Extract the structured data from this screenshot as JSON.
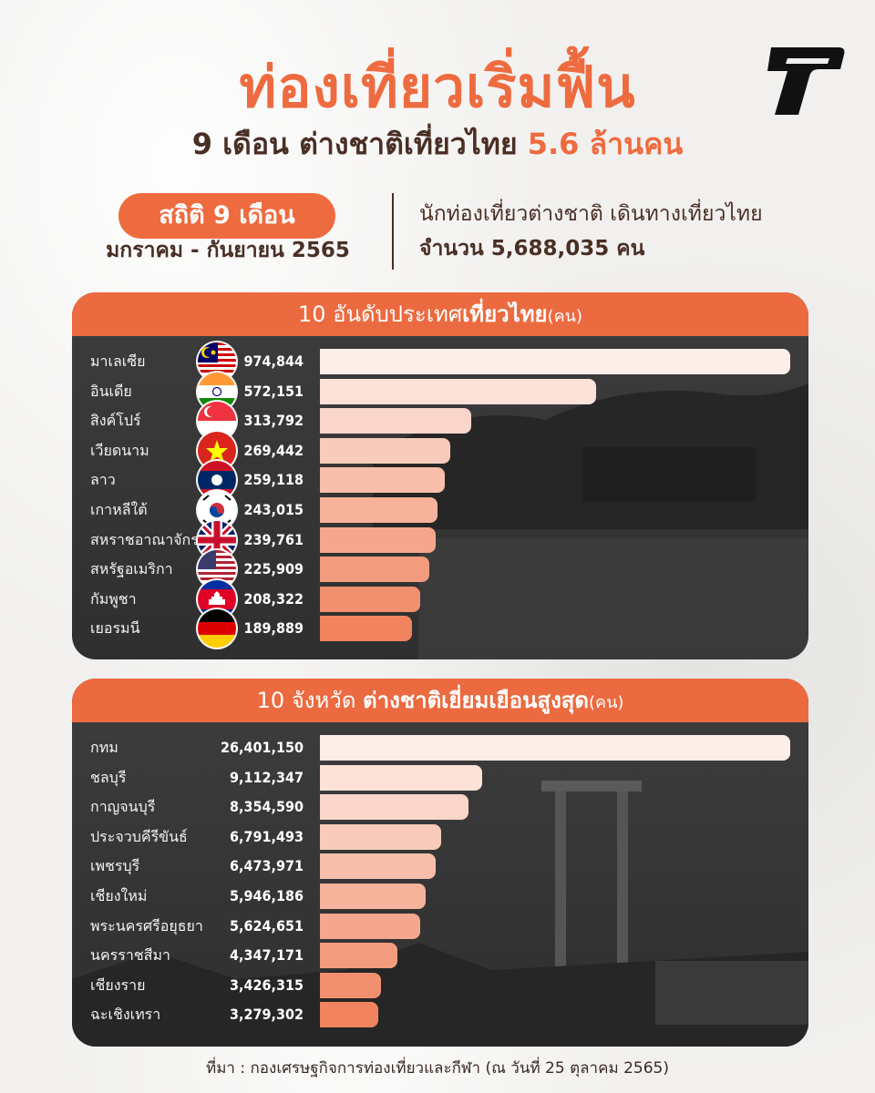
{
  "title": "ท่องเที่ยวเริ่มฟื้น",
  "subtitle": {
    "part1": "9 เดือน ต่างชาติเที่ยวไทย",
    "highlight": "5.6 ล้านคน"
  },
  "stats": {
    "pill": "สถิติ 9 เดือน",
    "range": "มกราคม - กันยายน 2565",
    "description": "นักท่องเที่ยวต่างชาติ เดินทางเที่ยวไทย",
    "total_line": "จำนวน 5,688,035 คน"
  },
  "colors": {
    "accent": "#ee6b3f",
    "text_dark": "#4a2f25",
    "bar_light": "#fdeee8",
    "bar_dark": "#f0845f"
  },
  "footer": "ที่มา : กองเศรษฐกิจการท่องเที่ยวและกีฬา (ณ วันที่ 25 ตุลาคม 2565)",
  "chart_data": [
    {
      "type": "bar",
      "orientation": "horizontal",
      "title": "10 อันดับประเทศเที่ยวไทย(คน)",
      "title_parts": {
        "prefix": "10 อันดับประเทศ",
        "bold": "เที่ยวไทย",
        "unit": "(คน)"
      },
      "categories": [
        "มาเลเซีย",
        "อินเดีย",
        "สิงค์โปร์",
        "เวียดนาม",
        "ลาว",
        "เกาหลีใต้",
        "สหราชอาณาจักร",
        "สหรัฐอเมริกา",
        "กัมพูชา",
        "เยอรมนี"
      ],
      "value_labels": [
        "974,844",
        "572,151",
        "313,792",
        "269,442",
        "259,118",
        "243,015",
        "239,761",
        "225,909",
        "208,322",
        "189,889"
      ],
      "values": [
        974844,
        572151,
        313792,
        269442,
        259118,
        243015,
        239761,
        225909,
        208322,
        189889
      ],
      "icons": [
        "malaysia-flag-icon",
        "india-flag-icon",
        "singapore-flag-icon",
        "vietnam-flag-icon",
        "laos-flag-icon",
        "south-korea-flag-icon",
        "uk-flag-icon",
        "usa-flag-icon",
        "cambodia-flag-icon",
        "germany-flag-icon"
      ]
    },
    {
      "type": "bar",
      "orientation": "horizontal",
      "title": "10 จังหวัด ต่างชาติเยี่ยมเยือนสูงสุด(คน)",
      "title_parts": {
        "prefix": "10 จังหวัด ",
        "bold": "ต่างชาติเยี่ยมเยือนสูงสุด",
        "unit": "(คน)"
      },
      "categories": [
        "กทม",
        "ชลบุรี",
        "กาญจนบุรี",
        "ประจวบคีรีขันธ์",
        "เพชรบุรี",
        "เชียงใหม่",
        "พระนครศรีอยุธยา",
        "นครราชสีมา",
        "เชียงราย",
        "ฉะเชิงเทรา"
      ],
      "value_labels": [
        "26,401,150",
        "9,112,347",
        "8,354,590",
        "6,791,493",
        "6,473,971",
        "5,946,186",
        "5,624,651",
        "4,347,171",
        "3,426,315",
        "3,279,302"
      ],
      "values": [
        26401150,
        9112347,
        8354590,
        6791493,
        6473971,
        5946186,
        5624651,
        4347171,
        3426315,
        3279302
      ]
    }
  ]
}
